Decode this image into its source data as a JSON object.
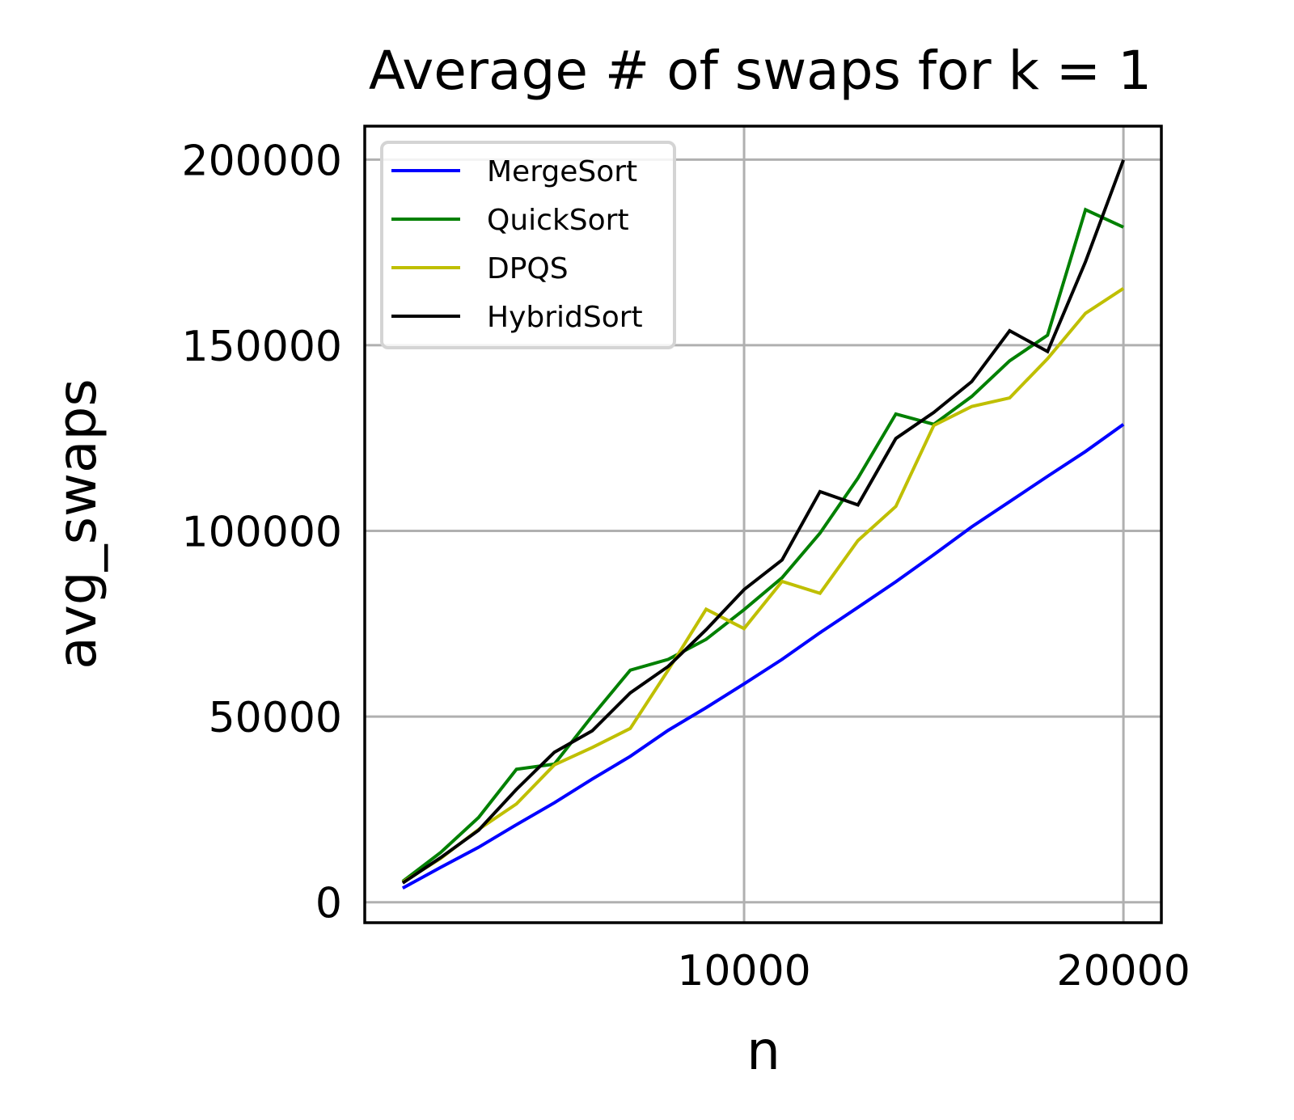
{
  "chart_data": {
    "type": "line",
    "title": "Average # of swaps for k = 1",
    "xlabel": "n",
    "ylabel": "avg_swaps",
    "xlim": [
      0,
      21000
    ],
    "ylim": [
      -5500,
      209000
    ],
    "xticks": [
      10000,
      20000
    ],
    "xtick_labels": [
      "10000",
      "20000"
    ],
    "yticks": [
      0,
      50000,
      100000,
      150000,
      200000
    ],
    "ytick_labels": [
      "0",
      "50000",
      "100000",
      "150000",
      "200000"
    ],
    "grid": true,
    "legend_position": "top-left",
    "x": [
      1000,
      2000,
      3000,
      4000,
      5000,
      6000,
      7000,
      8000,
      9000,
      10000,
      11000,
      12000,
      13000,
      14000,
      15000,
      16000,
      17000,
      18000,
      19000,
      20000
    ],
    "series": [
      {
        "name": "MergeSort",
        "color": "#0000ff",
        "values": [
          3800,
          9400,
          14800,
          20900,
          26800,
          33200,
          39300,
          46300,
          52400,
          58800,
          65400,
          72600,
          79400,
          86300,
          93600,
          101100,
          107900,
          114700,
          121400,
          128700
        ]
      },
      {
        "name": "QuickSort",
        "color": "#008000",
        "values": [
          5600,
          13400,
          22800,
          35800,
          37200,
          50200,
          62500,
          65400,
          70800,
          78800,
          87400,
          99400,
          114200,
          131500,
          128700,
          136200,
          145800,
          152700,
          186500,
          181800
        ]
      },
      {
        "name": "DPQS",
        "color": "#bfbf00",
        "values": [
          5400,
          11800,
          19600,
          26500,
          37000,
          41700,
          46800,
          62500,
          78900,
          73700,
          86400,
          83200,
          97400,
          106600,
          128400,
          133500,
          135800,
          146400,
          158600,
          165300
        ]
      },
      {
        "name": "HybridSort",
        "color": "#000000",
        "values": [
          5200,
          12000,
          19400,
          30400,
          40400,
          46200,
          56400,
          63500,
          73400,
          84200,
          92200,
          110600,
          107000,
          124900,
          131900,
          140200,
          153900,
          148300,
          172500,
          199900
        ]
      }
    ]
  }
}
